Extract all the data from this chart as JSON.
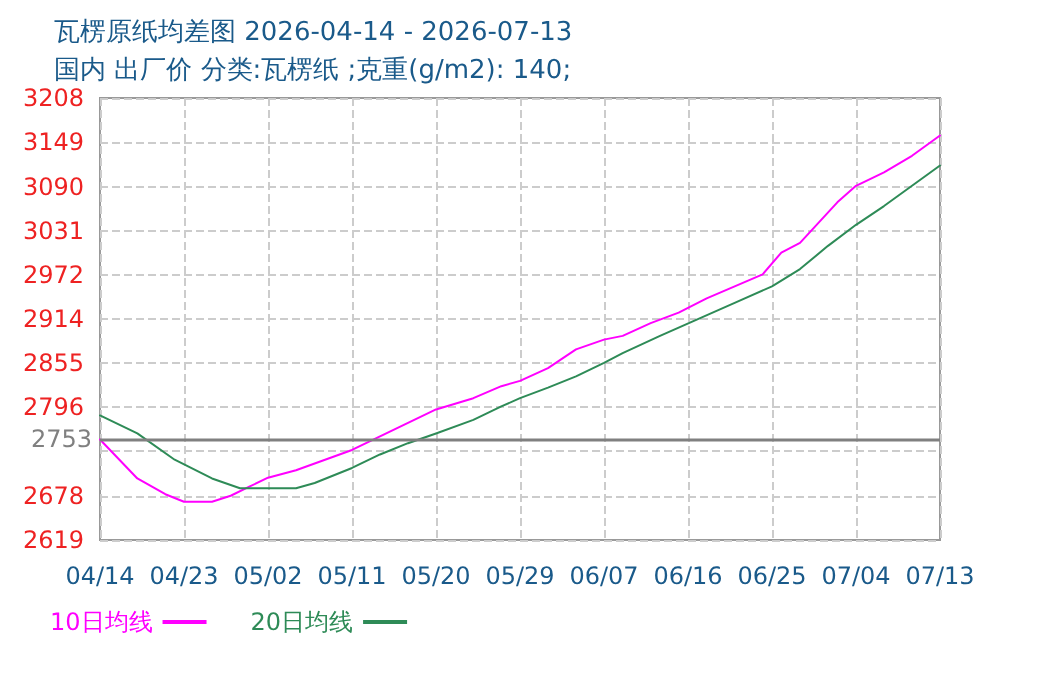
{
  "chart_data": {
    "type": "line",
    "title": "瓦楞原纸均差图 2026-04-14 - 2026-07-13",
    "subtitle": "国内 出厂价 分类:瓦楞纸 ;克重(g/m2): 140;",
    "xlim": [
      "2026-04-14",
      "2026-07-13"
    ],
    "xticks": [
      {
        "value": "2026-04-14",
        "label": "04/14"
      },
      {
        "value": "2026-04-23",
        "label": "04/23"
      },
      {
        "value": "2026-05-02",
        "label": "05/02"
      },
      {
        "value": "2026-05-11",
        "label": "05/11"
      },
      {
        "value": "2026-05-20",
        "label": "05/20"
      },
      {
        "value": "2026-05-29",
        "label": "05/29"
      },
      {
        "value": "2026-06-07",
        "label": "06/07"
      },
      {
        "value": "2026-06-16",
        "label": "06/16"
      },
      {
        "value": "2026-06-25",
        "label": "06/25"
      },
      {
        "value": "2026-07-04",
        "label": "07/04"
      },
      {
        "value": "2026-07-13",
        "label": "07/13"
      }
    ],
    "ylim": [
      2619,
      3208
    ],
    "yticks": [
      2619,
      2678,
      {
        "value": 2737,
        "label": null
      },
      2796,
      2855,
      2914,
      2972,
      3031,
      3090,
      3149,
      3208
    ],
    "ref_lines": [
      {
        "axis": "y",
        "value": 2753,
        "label": "2753",
        "color": "#808080"
      }
    ],
    "grid": true,
    "legend": "bottom left",
    "marker": "none",
    "line_style": "solid",
    "series": [
      {
        "name": "10日均线",
        "color": "#ff00ff",
        "x": [
          "2026-04-14",
          "2026-04-18",
          "2026-04-21",
          "2026-04-23",
          "2026-04-26",
          "2026-04-28",
          "2026-04-30",
          "2026-05-02",
          "2026-05-05",
          "2026-05-09",
          "2026-05-11",
          "2026-05-14",
          "2026-05-17",
          "2026-05-20",
          "2026-05-24",
          "2026-05-27",
          "2026-05-29",
          "2026-06-01",
          "2026-06-04",
          "2026-06-07",
          "2026-06-09",
          "2026-06-12",
          "2026-06-15",
          "2026-06-18",
          "2026-06-21",
          "2026-06-24",
          "2026-06-26",
          "2026-06-28",
          "2026-06-30",
          "2026-07-02",
          "2026-07-04",
          "2026-07-07",
          "2026-07-10",
          "2026-07-13"
        ],
        "values": [
          2753,
          2701,
          2680,
          2670,
          2670,
          2678,
          2690,
          2702,
          2712,
          2730,
          2739,
          2757,
          2775,
          2793,
          2808,
          2824,
          2831,
          2848,
          2873,
          2886,
          2891,
          2908,
          2922,
          2941,
          2957,
          2973,
          3002,
          3015,
          3042,
          3069,
          3091,
          3109,
          3131,
          3158
        ]
      },
      {
        "name": "20日均线",
        "color": "#2e8b57",
        "x": [
          "2026-04-14",
          "2026-04-18",
          "2026-04-22",
          "2026-04-26",
          "2026-04-29",
          "2026-05-02",
          "2026-05-05",
          "2026-05-07",
          "2026-05-11",
          "2026-05-14",
          "2026-05-17",
          "2026-05-20",
          "2026-05-24",
          "2026-05-27",
          "2026-05-29",
          "2026-06-01",
          "2026-06-04",
          "2026-06-07",
          "2026-06-09",
          "2026-06-13",
          "2026-06-17",
          "2026-06-21",
          "2026-06-25",
          "2026-06-28",
          "2026-07-01",
          "2026-07-04",
          "2026-07-07",
          "2026-07-10",
          "2026-07-13"
        ],
        "values": [
          2785,
          2761,
          2726,
          2701,
          2688,
          2688,
          2688,
          2695,
          2715,
          2733,
          2748,
          2761,
          2779,
          2797,
          2808,
          2822,
          2837,
          2855,
          2868,
          2891,
          2913,
          2935,
          2957,
          2980,
          3011,
          3039,
          3064,
          3091,
          3118
        ]
      }
    ]
  }
}
